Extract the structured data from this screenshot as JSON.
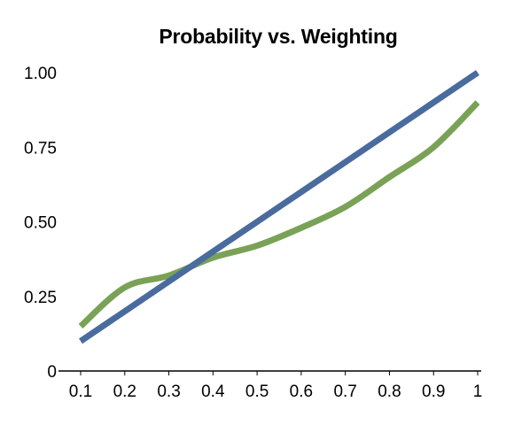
{
  "chart_data": {
    "type": "line",
    "title": "Probability vs. Weighting",
    "xlabel": "",
    "ylabel": "",
    "x": [
      0.1,
      0.2,
      0.3,
      0.4,
      0.5,
      0.6,
      0.7,
      0.8,
      0.9,
      1
    ],
    "x_tick_labels": [
      "0.1",
      "0.2",
      "0.3",
      "0.4",
      "0.5",
      "0.6",
      "0.7",
      "0.8",
      "0.9",
      "1"
    ],
    "y_tick_values": [
      0,
      0.25,
      0.5,
      0.75,
      1.0
    ],
    "y_tick_labels": [
      "0",
      "0.25",
      "0.50",
      "0.75",
      "1.00"
    ],
    "ylim": [
      0,
      1.0
    ],
    "grid": false,
    "legend": "none",
    "series": [
      {
        "color": "#4a6b9d",
        "values": [
          0.1,
          0.2,
          0.3,
          0.4,
          0.5,
          0.6,
          0.7,
          0.8,
          0.9,
          1.0
        ]
      },
      {
        "color": "#7aa257",
        "values": [
          0.15,
          0.28,
          0.32,
          0.38,
          0.42,
          0.48,
          0.55,
          0.65,
          0.75,
          0.9
        ]
      }
    ]
  }
}
